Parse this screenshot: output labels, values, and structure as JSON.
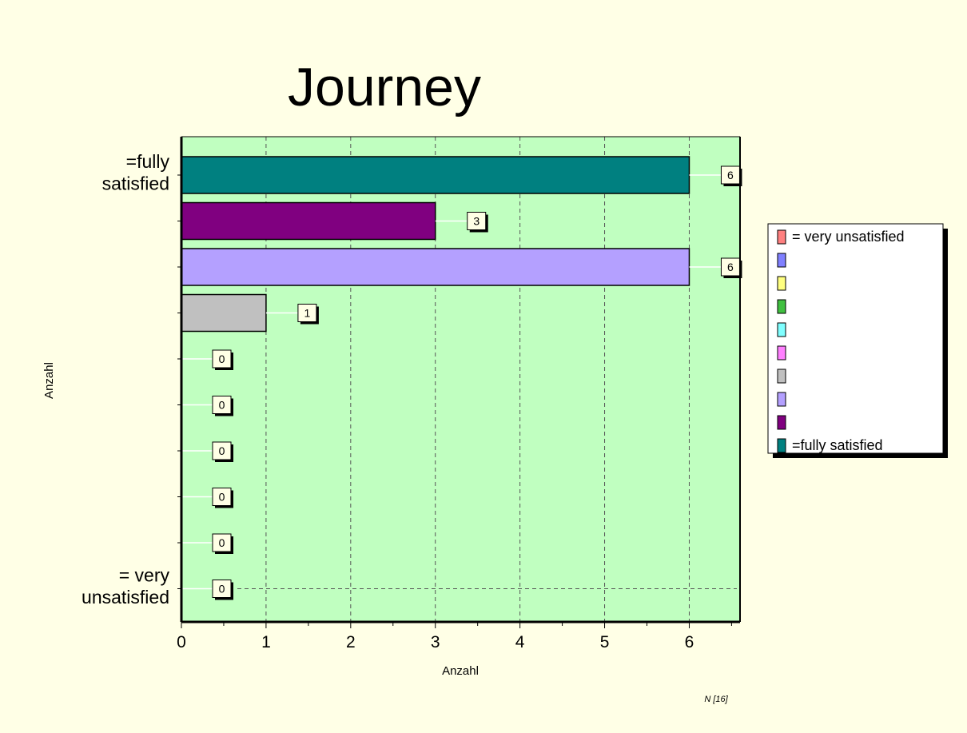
{
  "chart_data": {
    "type": "bar",
    "orientation": "horizontal",
    "title": "Journey",
    "xlabel": "Anzahl",
    "ylabel": "Anzahl",
    "xlim": [
      0,
      6.6
    ],
    "x_ticks": [
      "0",
      "1",
      "2",
      "3",
      "4",
      "5",
      "6"
    ],
    "grid": true,
    "legend_position": "right",
    "footnote": "N [16]",
    "categories": [
      {
        "axis_label": "=fully satisfied",
        "legend_label": "=fully satisfied",
        "value": 6,
        "color": "#008080"
      },
      {
        "axis_label": "",
        "legend_label": "",
        "value": 3,
        "color": "#800080"
      },
      {
        "axis_label": "",
        "legend_label": "",
        "value": 6,
        "color": "#b4a0ff"
      },
      {
        "axis_label": "",
        "legend_label": "",
        "value": 1,
        "color": "#c0c0c0"
      },
      {
        "axis_label": "",
        "legend_label": "",
        "value": 0,
        "color": "#ff80ff"
      },
      {
        "axis_label": "",
        "legend_label": "",
        "value": 0,
        "color": "#80ffff"
      },
      {
        "axis_label": "",
        "legend_label": "",
        "value": 0,
        "color": "#40c040"
      },
      {
        "axis_label": "",
        "legend_label": "",
        "value": 0,
        "color": "#ffff80"
      },
      {
        "axis_label": "",
        "legend_label": "",
        "value": 0,
        "color": "#8080ff"
      },
      {
        "axis_label": "= very unsatisfied",
        "legend_label": "= very unsatisfied",
        "value": 0,
        "color": "#ff8080"
      }
    ],
    "colors": {
      "background": "#ffffe6",
      "plot_area": "#c0ffc0"
    }
  }
}
